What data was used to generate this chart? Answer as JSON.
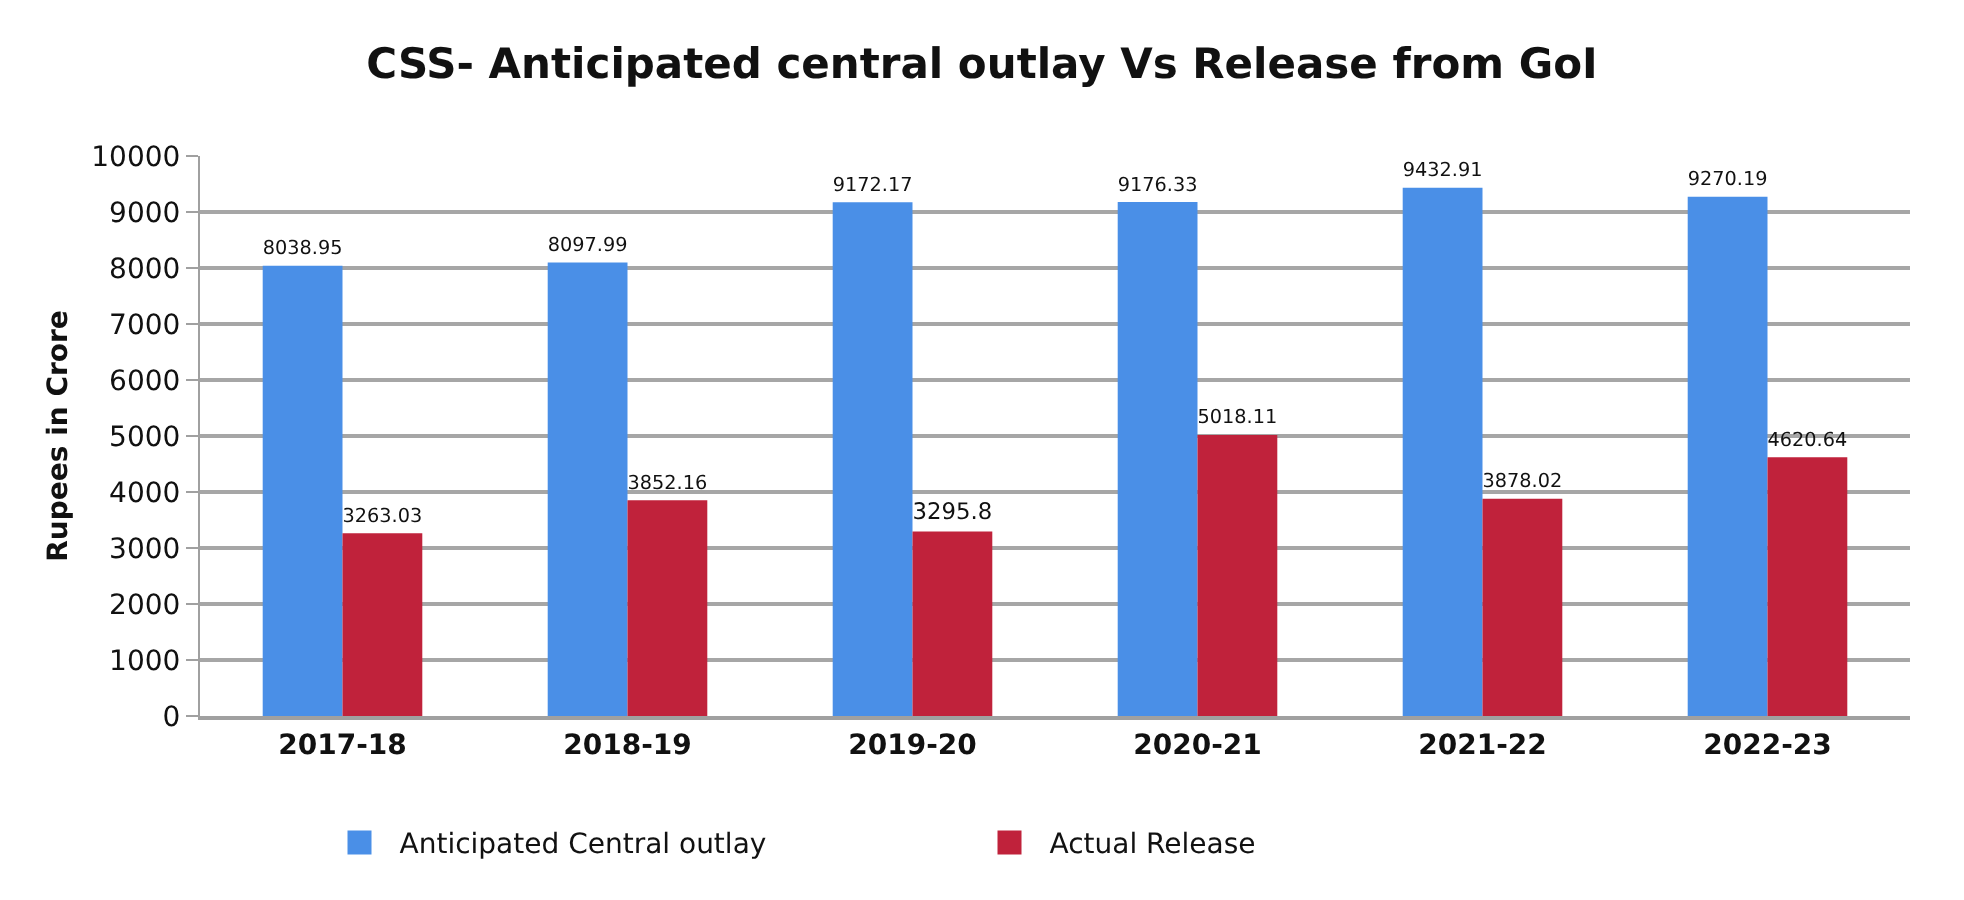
{
  "chart_data": {
    "type": "bar",
    "title": "CSS- Anticipated central outlay Vs Release from GoI",
    "ylabel": "Rupees in Crore",
    "categories": [
      "2017-18",
      "2018-19",
      "2019-20",
      "2020-21",
      "2021-22",
      "2022-23"
    ],
    "series": [
      {
        "name": "Anticipated Central outlay",
        "color": "#4a8fe7",
        "values": [
          8038.95,
          8097.99,
          9172.17,
          9176.33,
          9432.91,
          9270.19
        ]
      },
      {
        "name": "Actual Release",
        "color": "#c0223b",
        "values": [
          3263.03,
          3852.16,
          3295.8,
          5018.11,
          3878.02,
          4620.64
        ]
      }
    ],
    "ylim": [
      0,
      10000
    ],
    "yticks": [
      0,
      1000,
      2000,
      3000,
      4000,
      5000,
      6000,
      7000,
      8000,
      9000,
      10000
    ],
    "grid": "y",
    "legend": "bottom",
    "data_labels": true
  }
}
